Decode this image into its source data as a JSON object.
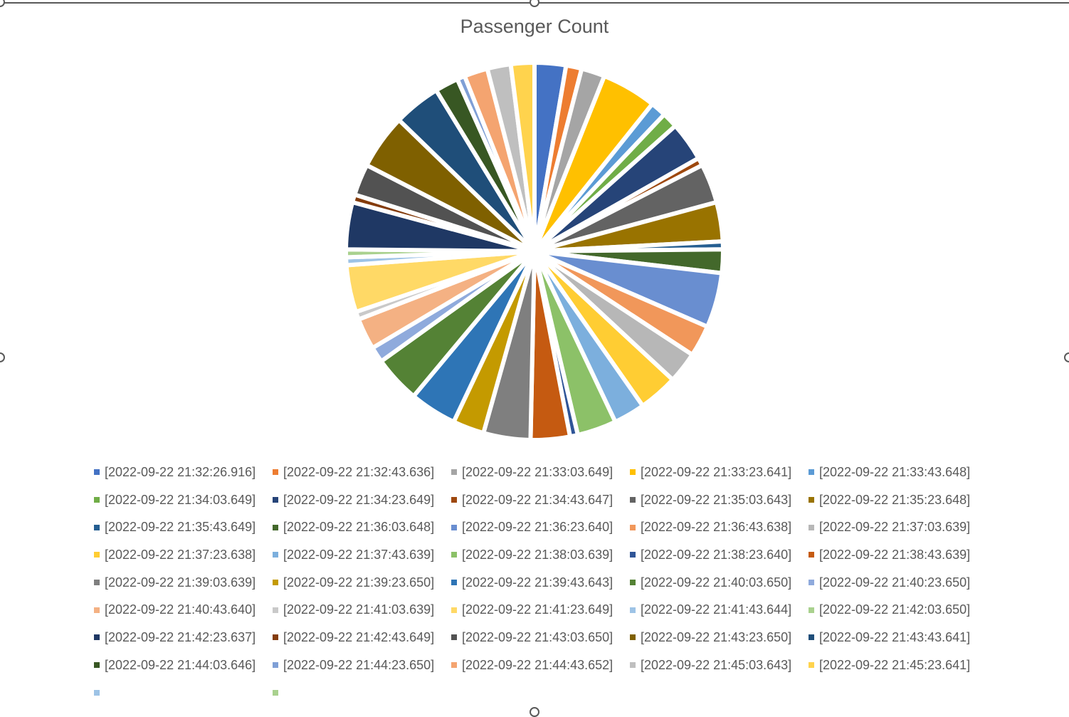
{
  "chart_data": {
    "type": "pie",
    "title": "Passenger Count",
    "legend_position": "bottom",
    "categories": [
      "[2022-09-22 21:32:26.916]",
      "[2022-09-22 21:32:43.636]",
      "[2022-09-22 21:33:03.649]",
      "[2022-09-22 21:33:23.641]",
      "[2022-09-22 21:33:43.648]",
      "[2022-09-22 21:34:03.649]",
      "[2022-09-22 21:34:23.649]",
      "[2022-09-22 21:34:43.647]",
      "[2022-09-22 21:35:03.643]",
      "[2022-09-22 21:35:23.648]",
      "[2022-09-22 21:35:43.649]",
      "[2022-09-22 21:36:03.648]",
      "[2022-09-22 21:36:23.640]",
      "[2022-09-22 21:36:43.638]",
      "[2022-09-22 21:37:03.639]",
      "[2022-09-22 21:37:23.638]",
      "[2022-09-22 21:37:43.639]",
      "[2022-09-22 21:38:03.639]",
      "[2022-09-22 21:38:23.640]",
      "[2022-09-22 21:38:43.639]",
      "[2022-09-22 21:39:03.639]",
      "[2022-09-22 21:39:23.650]",
      "[2022-09-22 21:39:43.643]",
      "[2022-09-22 21:40:03.650]",
      "[2022-09-22 21:40:23.650]",
      "[2022-09-22 21:40:43.640]",
      "[2022-09-22 21:41:03.639]",
      "[2022-09-22 21:41:23.649]",
      "[2022-09-22 21:41:43.644]",
      "[2022-09-22 21:42:03.650]",
      "[2022-09-22 21:42:23.637]",
      "[2022-09-22 21:42:43.649]",
      "[2022-09-22 21:43:03.650]",
      "[2022-09-22 21:43:23.650]",
      "[2022-09-22 21:43:43.641]",
      "[2022-09-22 21:44:03.646]",
      "[2022-09-22 21:44:23.650]",
      "[2022-09-22 21:44:43.652]",
      "[2022-09-22 21:45:03.643]",
      "[2022-09-22 21:45:23.641]",
      "",
      ""
    ],
    "values": [
      4,
      2,
      3,
      7,
      2,
      2,
      5,
      1,
      5,
      5,
      1,
      3,
      7,
      4,
      4,
      5,
      4,
      5,
      1,
      5,
      6,
      4,
      6,
      6,
      2,
      4,
      1,
      6,
      1,
      1,
      6,
      1,
      4,
      7,
      6,
      3,
      1,
      3,
      3,
      3,
      0,
      0
    ],
    "colors": [
      "#4472C4",
      "#ED7D31",
      "#A5A5A5",
      "#FFC000",
      "#5B9BD5",
      "#70AD47",
      "#264478",
      "#9E480E",
      "#636363",
      "#997300",
      "#255E91",
      "#43682B",
      "#698ED0",
      "#F1975A",
      "#B7B7B7",
      "#FFCD33",
      "#7CAFDD",
      "#8CC168",
      "#2F5597",
      "#C55A11",
      "#7F7F7F",
      "#C49A00",
      "#2E75B6",
      "#548235",
      "#8FAADC",
      "#F4B183",
      "#C9C9C9",
      "#FFD966",
      "#9DC3E6",
      "#A9D18E",
      "#1F3864",
      "#843C0C",
      "#525252",
      "#7F6000",
      "#1F4E79",
      "#385723",
      "#7F9FD6",
      "#F4A470",
      "#BFBFBF",
      "#FFD34D",
      "#9DC3E6",
      "#A9D18E"
    ]
  }
}
